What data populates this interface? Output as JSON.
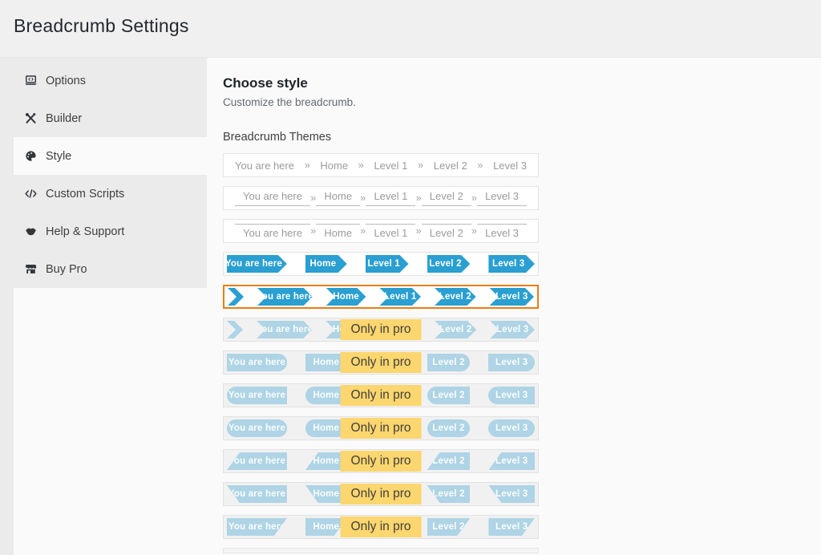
{
  "app": {
    "title": "Breadcrumb Settings"
  },
  "sidebar": {
    "items": [
      {
        "label": "Options",
        "icon": "laptop-icon",
        "active": false
      },
      {
        "label": "Builder",
        "icon": "tools-icon",
        "active": false
      },
      {
        "label": "Style",
        "icon": "palette-icon",
        "active": true
      },
      {
        "label": "Custom Scripts",
        "icon": "code-icon",
        "active": false
      },
      {
        "label": "Help & Support",
        "icon": "support-icon",
        "active": false
      },
      {
        "label": "Buy Pro",
        "icon": "store-icon",
        "active": false
      }
    ]
  },
  "main": {
    "heading": "Choose style",
    "subheading": "Customize the breadcrumb.",
    "themes_label": "Breadcrumb Themes",
    "breadcrumb_items": [
      "You are here",
      "Home",
      "Level 1",
      "Level 2",
      "Level 3"
    ],
    "separator": "»",
    "pro_badge": "Only in pro",
    "themes": [
      {
        "style": "plain",
        "pro": false,
        "selected": false
      },
      {
        "style": "underline",
        "pro": false,
        "selected": false
      },
      {
        "style": "overline",
        "pro": false,
        "selected": false
      },
      {
        "style": "arrow",
        "pro": false,
        "selected": false
      },
      {
        "style": "chevron",
        "pro": false,
        "selected": true
      },
      {
        "style": "chevron",
        "pro": true,
        "selected": false
      },
      {
        "style": "round-right",
        "pro": true,
        "selected": false
      },
      {
        "style": "round-left",
        "pro": true,
        "selected": false
      },
      {
        "style": "pill",
        "pro": true,
        "selected": false
      },
      {
        "style": "slant-up",
        "pro": true,
        "selected": false
      },
      {
        "style": "slant-down",
        "pro": true,
        "selected": false
      },
      {
        "style": "slant-right",
        "pro": true,
        "selected": false
      },
      {
        "style": "partial",
        "pro": false,
        "selected": false
      }
    ],
    "colors": {
      "accent_blue": "#2a9fd1",
      "faded_blue": "#aed4e5",
      "badge_yellow": "#fcd66e",
      "selection_orange": "#e87e12"
    }
  }
}
